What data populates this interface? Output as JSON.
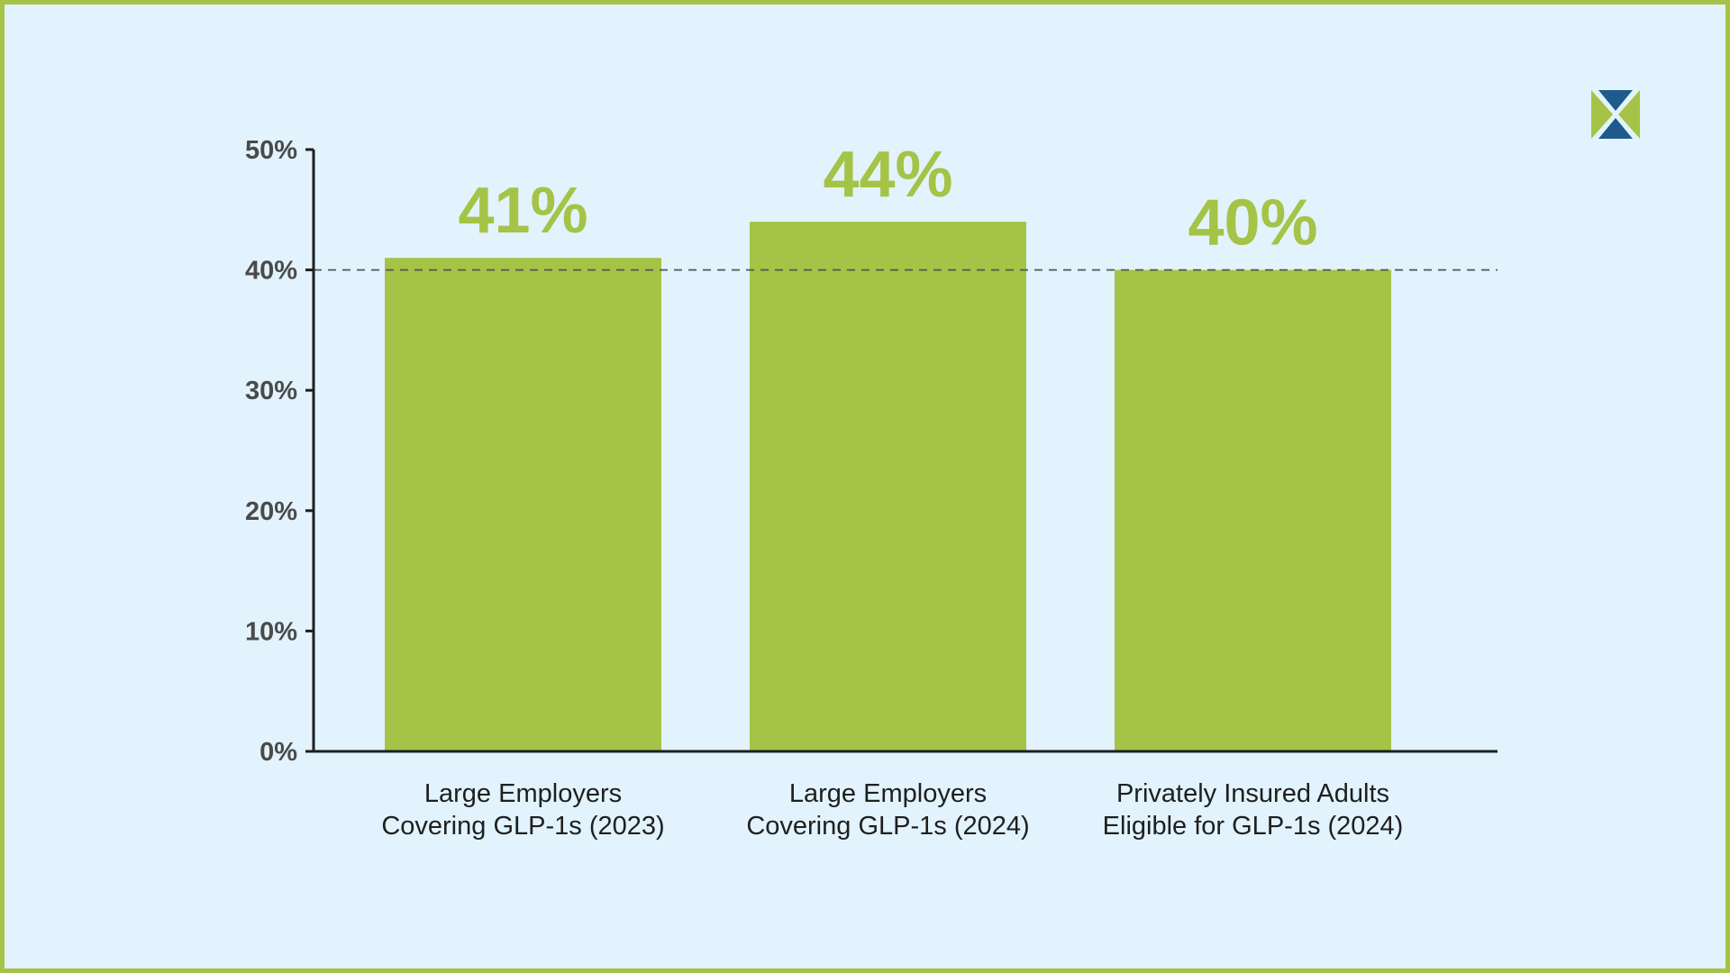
{
  "colors": {
    "background": "#e2f3fd",
    "border": "#a5c346",
    "bar": "#a5c346",
    "axis": "#1f1f1f",
    "reference_line": "#555555",
    "logo_green": "#a5c346",
    "logo_blue": "#1f5a8c"
  },
  "logo": {
    "icon": "x-logo-icon"
  },
  "chart_data": {
    "type": "bar",
    "categories": [
      [
        "Large Employers",
        "Covering GLP-1s (2023)"
      ],
      [
        "Large Employers",
        "Covering GLP-1s (2024)"
      ],
      [
        "Privately Insured Adults",
        "Eligible for GLP-1s (2024)"
      ]
    ],
    "values": [
      41,
      44,
      40
    ],
    "data_labels": [
      "41%",
      "44%",
      "40%"
    ],
    "y_ticks": [
      0,
      10,
      20,
      30,
      40,
      50
    ],
    "y_tick_labels": [
      "0%",
      "10%",
      "20%",
      "30%",
      "40%",
      "50%"
    ],
    "ylim": [
      0,
      50
    ],
    "reference_line": 40,
    "title": "",
    "xlabel": "",
    "ylabel": "",
    "grid": false,
    "legend": "none"
  }
}
